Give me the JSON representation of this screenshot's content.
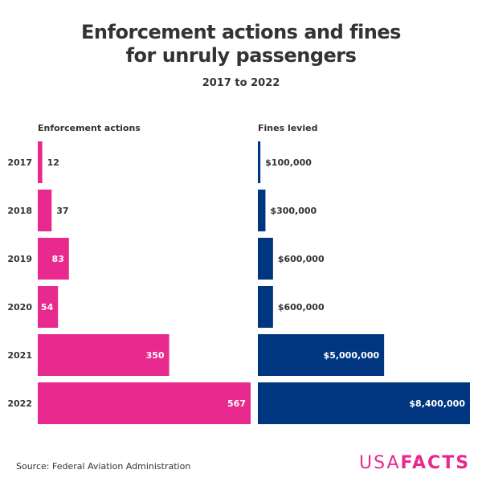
{
  "chart_data": {
    "type": "bar",
    "orientation": "horizontal",
    "title": "Enforcement actions and fines for unruly passengers",
    "title_lines": [
      "Enforcement actions and fines",
      "for unruly passengers"
    ],
    "subtitle": "2017 to 2022",
    "categories": [
      "2017",
      "2018",
      "2019",
      "2020",
      "2021",
      "2022"
    ],
    "series": [
      {
        "name": "Enforcement actions",
        "color": "#e8298e",
        "values": [
          12,
          37,
          83,
          54,
          350,
          567
        ],
        "labels": [
          "12",
          "37",
          "83",
          "54",
          "350",
          "567"
        ]
      },
      {
        "name": "Fines levied",
        "color": "#003580",
        "values": [
          100000,
          300000,
          600000,
          600000,
          5000000,
          8400000
        ],
        "labels": [
          "$100,000",
          "$300,000",
          "$600,000",
          "$600,000",
          "$5,000,000",
          "$8,400,000"
        ]
      }
    ],
    "grid": false,
    "legend": "none"
  },
  "source": "Source: Federal Aviation Administration",
  "logo": {
    "light": "USA",
    "bold": "FACTS"
  }
}
